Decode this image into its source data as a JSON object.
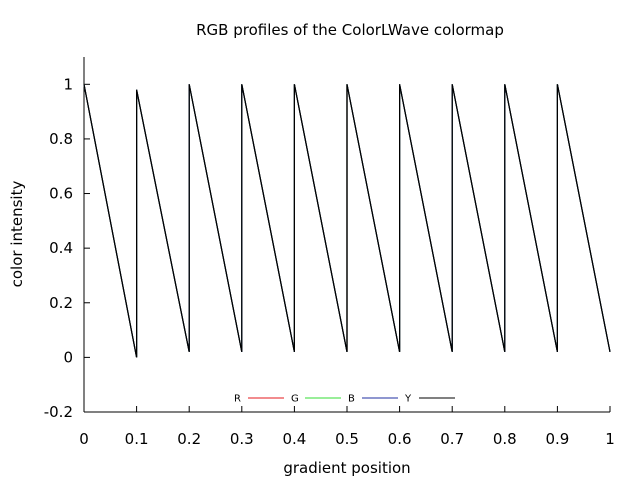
{
  "chart_data": {
    "type": "line",
    "title": "RGB profiles of the ColorLWave colormap",
    "xlabel": "gradient position",
    "ylabel": "color intensity",
    "xlim": [
      0,
      1
    ],
    "ylim": [
      -0.2,
      1.1
    ],
    "xticks": [
      "0",
      "0.1",
      "0.2",
      "0.3",
      "0.4",
      "0.5",
      "0.6",
      "0.7",
      "0.8",
      "0.9",
      "1"
    ],
    "xtick_values": [
      0,
      0.1,
      0.2,
      0.3,
      0.4,
      0.5,
      0.6,
      0.7,
      0.8,
      0.9,
      1
    ],
    "yticks": [
      "-0.2",
      "0",
      "0.2",
      "0.4",
      "0.6",
      "0.8",
      "1"
    ],
    "ytick_values": [
      -0.2,
      0,
      0.2,
      0.4,
      0.6,
      0.8,
      1
    ],
    "grid": false,
    "legend_position": "bottom-center",
    "x": [
      0,
      0.1,
      0.1,
      0.2,
      0.2,
      0.3,
      0.3,
      0.4,
      0.4,
      0.5,
      0.5,
      0.6,
      0.6,
      0.7,
      0.7,
      0.8,
      0.8,
      0.9,
      0.9,
      1
    ],
    "series": [
      {
        "name": "R",
        "color": "#e41a1c",
        "values": [
          1,
          0,
          0.98,
          0.02,
          1,
          0.02,
          1,
          0.02,
          1,
          0.02,
          1,
          0.02,
          1,
          0.02,
          1,
          0.02,
          1,
          0.02,
          1,
          0.02
        ]
      },
      {
        "name": "G",
        "color": "#33dd33",
        "values": [
          1,
          0,
          0.98,
          0.02,
          1,
          0.02,
          1,
          0.02,
          1,
          0.02,
          1,
          0.02,
          1,
          0.02,
          1,
          0.02,
          1,
          0.02,
          1,
          0.02
        ]
      },
      {
        "name": "B",
        "color": "#1f2fa0",
        "values": [
          1,
          0,
          0.98,
          0.02,
          1,
          0.02,
          1,
          0.02,
          1,
          0.02,
          1,
          0.02,
          1,
          0.02,
          1,
          0.02,
          1,
          0.02,
          1,
          0.02
        ]
      },
      {
        "name": "Y",
        "color": "#000000",
        "values": [
          1,
          0,
          0.98,
          0.02,
          1,
          0.02,
          1,
          0.02,
          1,
          0.02,
          1,
          0.02,
          1,
          0.02,
          1,
          0.02,
          1,
          0.02,
          1,
          0.02
        ]
      }
    ]
  }
}
